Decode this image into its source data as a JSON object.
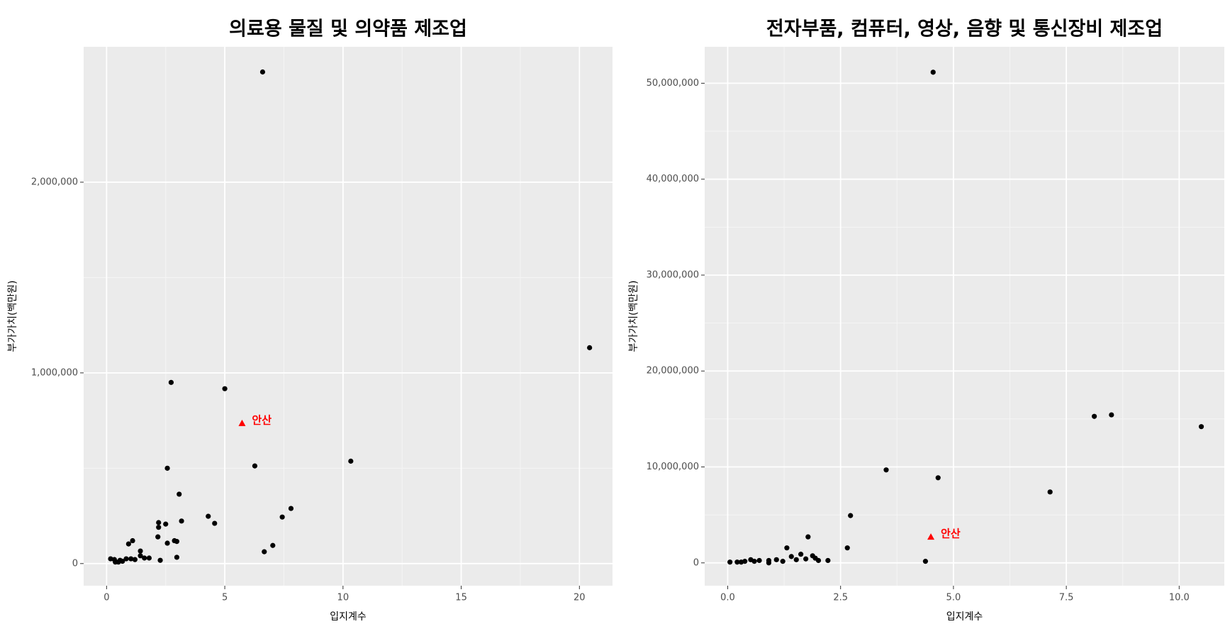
{
  "chart_data": [
    {
      "type": "scatter",
      "title": "의료용 물질 및 의약품 제조업",
      "x_label": "입지계수",
      "y_label": "부가가치(백만원)",
      "xlim": [
        -0.97,
        21.4
      ],
      "ylim": [
        -116000,
        2710000
      ],
      "xticks": [
        0,
        5,
        10,
        15,
        20
      ],
      "yticks": [
        0,
        {
          "value": 1000000,
          "label": "1,000,000"
        },
        {
          "value": 2000000,
          "label": "2,000,000"
        }
      ],
      "grid": true,
      "color": "#000000",
      "x": [
        6.6,
        20.43,
        2.73,
        5.0,
        10.33,
        6.27,
        2.57,
        3.07,
        7.8,
        4.3,
        7.43,
        3.17,
        2.2,
        4.57,
        2.5,
        2.2,
        2.17,
        2.87,
        1.1,
        2.97,
        2.57,
        0.93,
        7.03,
        1.43,
        6.67,
        1.43,
        2.97,
        1.6,
        1.8,
        0.17,
        0.83,
        1.03,
        1.2,
        0.33,
        0.57,
        2.27,
        0.37,
        0.67,
        0.5
      ],
      "values": [
        2578000,
        1132000,
        950000,
        917000,
        537000,
        512000,
        500000,
        364000,
        289000,
        248000,
        244000,
        223000,
        215000,
        211000,
        207000,
        190000,
        140000,
        120000,
        120000,
        116000,
        107000,
        103000,
        95000,
        66000,
        62000,
        41000,
        33000,
        29000,
        29000,
        25000,
        25000,
        25000,
        21000,
        21000,
        17000,
        17000,
        8000,
        12000,
        8000
      ],
      "annotations": [
        {
          "text": "안산",
          "x": 5.73,
          "y": 736000,
          "color": "#ff0000"
        }
      ]
    },
    {
      "type": "scatter",
      "title": "전자부품, 컴퓨터, 영상, 음향 및 통신장비 제조업",
      "x_label": "입지계수",
      "y_label": "부가가치(백만원)",
      "xlim": [
        -0.51,
        11.0
      ],
      "ylim": [
        -2380000,
        53800000
      ],
      "xticks": [
        {
          "value": 0,
          "label": "0.0"
        },
        2.5,
        {
          "value": 5,
          "label": "5.0"
        },
        7.5,
        {
          "value": 10,
          "label": "10.0"
        }
      ],
      "yticks": [
        0,
        {
          "value": 10000000,
          "label": "10,000,000"
        },
        {
          "value": 20000000,
          "label": "20,000,000"
        },
        {
          "value": 30000000,
          "label": "30,000,000"
        },
        {
          "value": 40000000,
          "label": "40,000,000"
        },
        {
          "value": 50000000,
          "label": "50,000,000"
        }
      ],
      "grid": true,
      "color": "#000000",
      "x": [
        4.55,
        8.5,
        8.12,
        10.49,
        3.51,
        4.66,
        7.14,
        2.72,
        1.78,
        1.31,
        2.65,
        1.62,
        1.88,
        1.41,
        1.94,
        2.22,
        2.01,
        4.38,
        0.7,
        0.51,
        1.08,
        0.91,
        1.52,
        1.73,
        0.38,
        0.21,
        0.05,
        0.3,
        0.59,
        1.22,
        0.91
      ],
      "values": [
        51150000,
        15430000,
        15270000,
        14200000,
        9690000,
        8870000,
        7390000,
        4930000,
        2710000,
        1560000,
        1560000,
        900000,
        740000,
        660000,
        490000,
        250000,
        250000,
        160000,
        250000,
        330000,
        330000,
        250000,
        330000,
        410000,
        160000,
        80000,
        80000,
        80000,
        160000,
        160000,
        0
      ],
      "annotations": [
        {
          "text": "안산",
          "x": 4.5,
          "y": 2710000,
          "color": "#ff0000"
        }
      ]
    }
  ]
}
